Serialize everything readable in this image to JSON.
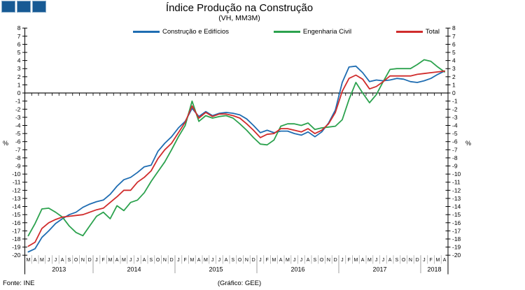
{
  "header": {
    "title": "Índice Produção na Construção",
    "subtitle": "(VH, MM3M)"
  },
  "footer": {
    "source": "Fonte: INE",
    "credit": "(Gráfico: GEE)"
  },
  "axis": {
    "left_unit": "%",
    "right_unit": "%"
  },
  "decoration": {
    "squares_fill": "#175A94",
    "squares_border": "#86AAC8",
    "square_count": 3
  },
  "chart_data": {
    "type": "line",
    "title": "Índice Produção na Construção",
    "subtitle": "(VH, MM3M)",
    "ylabel": "%",
    "ylim": [
      -20,
      8
    ],
    "ytick_step": 1,
    "grid": false,
    "legend_position": "top-center",
    "month_labels": [
      "M",
      "A",
      "M",
      "J",
      "J",
      "A",
      "S",
      "O",
      "N",
      "D",
      "J",
      "F",
      "M",
      "A",
      "M",
      "J",
      "J",
      "A",
      "S",
      "O",
      "N",
      "D",
      "J",
      "F",
      "M",
      "A",
      "M",
      "J",
      "J",
      "A",
      "S",
      "O",
      "N",
      "D",
      "J",
      "F",
      "M",
      "A",
      "M",
      "J",
      "J",
      "A",
      "S",
      "O",
      "N",
      "D",
      "J",
      "F",
      "M",
      "A",
      "M",
      "J",
      "J",
      "A",
      "S",
      "O",
      "N",
      "D",
      "J",
      "F",
      "M",
      "A"
    ],
    "years": [
      {
        "label": "2013",
        "months": 10
      },
      {
        "label": "2014",
        "months": 12
      },
      {
        "label": "2015",
        "months": 12
      },
      {
        "label": "2016",
        "months": 12
      },
      {
        "label": "2017",
        "months": 12
      },
      {
        "label": "2018",
        "months": 4
      }
    ],
    "series": [
      {
        "name": "Construção e Edifícios",
        "color": "#1F6DB2",
        "values": [
          -19.6,
          -19.2,
          -17.8,
          -17.0,
          -16.1,
          -15.5,
          -15.0,
          -14.7,
          -14.1,
          -13.7,
          -13.4,
          -13.2,
          -12.5,
          -11.5,
          -10.7,
          -10.4,
          -9.8,
          -9.1,
          -8.9,
          -7.2,
          -6.2,
          -5.4,
          -4.3,
          -3.5,
          -1.9,
          -2.9,
          -2.3,
          -2.8,
          -2.5,
          -2.4,
          -2.5,
          -2.7,
          -3.2,
          -4.0,
          -4.9,
          -4.6,
          -4.9,
          -4.7,
          -4.7,
          -5.0,
          -5.2,
          -4.8,
          -5.4,
          -4.8,
          -3.7,
          -2.1,
          1.3,
          3.2,
          3.3,
          2.5,
          1.4,
          1.6,
          1.5,
          1.6,
          1.8,
          1.7,
          1.4,
          1.3,
          1.5,
          1.8,
          2.3,
          2.7
        ]
      },
      {
        "name": "Engenharia Civil",
        "color": "#2CA24E",
        "values": [
          -17.6,
          -16.1,
          -14.3,
          -14.2,
          -14.7,
          -15.3,
          -16.4,
          -17.2,
          -17.6,
          -16.4,
          -15.2,
          -14.7,
          -15.5,
          -13.9,
          -14.5,
          -13.5,
          -13.2,
          -12.3,
          -10.9,
          -9.7,
          -8.5,
          -7.0,
          -5.4,
          -4.0,
          -1.0,
          -3.5,
          -2.8,
          -3.1,
          -2.9,
          -2.8,
          -3.1,
          -3.8,
          -4.6,
          -5.5,
          -6.3,
          -6.4,
          -5.8,
          -4.1,
          -3.8,
          -3.8,
          -4.0,
          -3.7,
          -4.5,
          -4.3,
          -4.2,
          -4.1,
          -3.3,
          -0.8,
          1.3,
          0.0,
          -1.2,
          -0.2,
          1.4,
          2.9,
          3.0,
          3.0,
          3.0,
          3.5,
          4.1,
          3.9,
          3.2,
          2.6
        ]
      },
      {
        "name": "Total",
        "color": "#D02C2C",
        "values": [
          -18.9,
          -18.4,
          -16.7,
          -16.0,
          -15.6,
          -15.3,
          -15.2,
          -15.1,
          -15.0,
          -14.7,
          -14.4,
          -14.2,
          -13.5,
          -12.8,
          -12.0,
          -12.0,
          -11.0,
          -10.4,
          -9.6,
          -8.1,
          -7.0,
          -6.2,
          -4.9,
          -3.6,
          -1.6,
          -3.1,
          -2.4,
          -2.9,
          -2.6,
          -2.6,
          -2.8,
          -3.1,
          -3.8,
          -4.6,
          -5.5,
          -5.1,
          -5.0,
          -4.4,
          -4.4,
          -4.6,
          -4.8,
          -4.4,
          -5.0,
          -4.6,
          -3.8,
          -2.4,
          0.2,
          1.8,
          2.2,
          1.7,
          0.5,
          0.8,
          1.4,
          2.1,
          2.1,
          2.1,
          2.1,
          2.3,
          2.4,
          2.5,
          2.6,
          2.7
        ]
      }
    ]
  }
}
